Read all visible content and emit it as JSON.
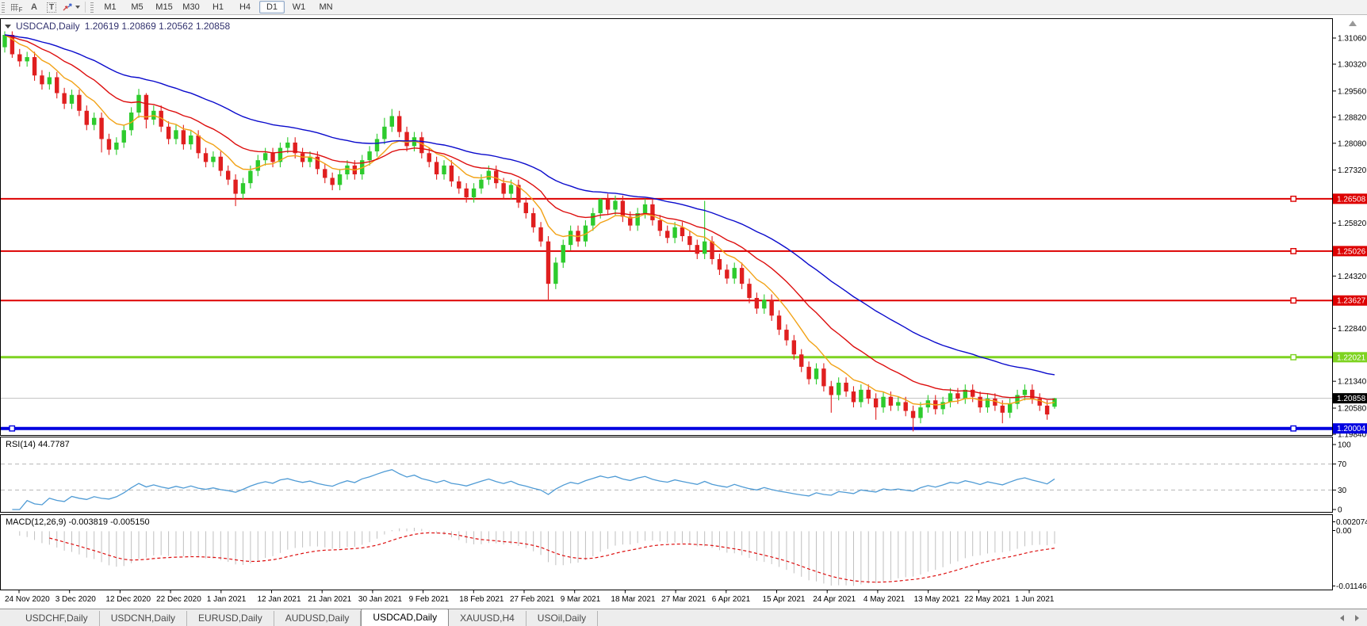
{
  "toolbar": {
    "icons": {
      "grid_letter": "F",
      "text_label": "A",
      "text_box": "T"
    },
    "timeframes": [
      "M1",
      "M5",
      "M15",
      "M30",
      "H1",
      "H4",
      "D1",
      "W1",
      "MN"
    ],
    "active_timeframe": "D1"
  },
  "chart": {
    "title_symbol": "USDCAD,Daily",
    "title_ohlc": "1.20619 1.20869 1.20562 1.20858"
  },
  "rsi_panel": {
    "label": "RSI(14) 44.7787"
  },
  "macd_panel": {
    "label": "MACD(12,26,9) -0.003819 -0.005150"
  },
  "tabs": {
    "items": [
      {
        "label": "USDCHF,Daily",
        "active": false
      },
      {
        "label": "USDCNH,Daily",
        "active": false
      },
      {
        "label": "EURUSD,Daily",
        "active": false
      },
      {
        "label": "AUDUSD,Daily",
        "active": false
      },
      {
        "label": "USDCAD,Daily",
        "active": true
      },
      {
        "label": "XAUUSD,H4",
        "active": false
      },
      {
        "label": "USOil,Daily",
        "active": false
      }
    ]
  },
  "chart_data": {
    "type": "candlestick",
    "symbol": "USDCAD",
    "timeframe": "Daily",
    "ohlc_current": {
      "open": 1.20619,
      "high": 1.20869,
      "low": 1.20562,
      "close": 1.20858
    },
    "x_labels": [
      "24 Nov 2020",
      "3 Dec 2020",
      "12 Dec 2020",
      "22 Dec 2020",
      "1 Jan 2021",
      "12 Jan 2021",
      "21 Jan 2021",
      "30 Jan 2021",
      "9 Feb 2021",
      "18 Feb 2021",
      "27 Feb 2021",
      "9 Mar 2021",
      "18 Mar 2021",
      "27 Mar 2021",
      "6 Apr 2021",
      "15 Apr 2021",
      "24 Apr 2021",
      "4 May 2021",
      "13 May 2021",
      "22 May 2021",
      "1 Jun 2021"
    ],
    "y_ticks": [
      1.3106,
      1.3032,
      1.2956,
      1.2882,
      1.2808,
      1.2732,
      1.2582,
      1.2432,
      1.2284,
      1.2134,
      1.2058,
      1.1984
    ],
    "current_price": 1.20858,
    "hlines": [
      {
        "value": 1.26508,
        "color": "#dd0000",
        "thickness": 2
      },
      {
        "value": 1.25026,
        "color": "#dd0000",
        "thickness": 2
      },
      {
        "value": 1.23627,
        "color": "#dd0000",
        "thickness": 2
      },
      {
        "value": 1.22021,
        "color": "#7ed321",
        "thickness": 3
      },
      {
        "value": 1.20004,
        "color": "#0000e0",
        "thickness": 4
      }
    ],
    "mas": [
      {
        "name": "fast",
        "period": 8,
        "color": "#f2a216"
      },
      {
        "name": "mid",
        "period": 18,
        "color": "#dd0e0e"
      },
      {
        "name": "slow",
        "period": 40,
        "color": "#0a0acc"
      }
    ],
    "colors": {
      "bull": "#2dcb2d",
      "bear": "#e01f1f",
      "grid_price_line": "#c0c0c0"
    },
    "rsi": {
      "period": 14,
      "value": 44.7787,
      "levels": [
        100,
        70,
        30,
        0
      ],
      "dashed_levels": [
        70,
        30
      ],
      "color": "#4f9bd5"
    },
    "macd": {
      "fast": 12,
      "slow": 26,
      "signal_period": 9,
      "macd_value": -0.003819,
      "signal_value": -0.00515,
      "axis_max": "0.002074",
      "axis_zero": "0.00",
      "axis_min": "-0.011463",
      "hist_color": "#c0c0c0",
      "signal_color": "#dd0e0e"
    },
    "candles": [
      [
        1.308,
        1.3125,
        1.3065,
        1.3115
      ],
      [
        1.3115,
        1.3125,
        1.305,
        1.306
      ],
      [
        1.306,
        1.3075,
        1.3025,
        1.304
      ],
      [
        1.304,
        1.3067,
        1.3025,
        1.3052
      ],
      [
        1.3052,
        1.3067,
        1.2985,
        1.3
      ],
      [
        1.3,
        1.3015,
        1.296,
        1.2975
      ],
      [
        1.2975,
        1.301,
        1.296,
        1.2995
      ],
      [
        1.2995,
        1.301,
        1.2935,
        1.295
      ],
      [
        1.295,
        1.2965,
        1.2905,
        1.292
      ],
      [
        1.292,
        1.296,
        1.2905,
        1.2945
      ],
      [
        1.2945,
        1.296,
        1.2885,
        1.29
      ],
      [
        1.29,
        1.2915,
        1.2845,
        1.286
      ],
      [
        1.286,
        1.2895,
        1.2845,
        1.288
      ],
      [
        1.288,
        1.2895,
        1.2782,
        1.282
      ],
      [
        1.282,
        1.2835,
        1.2775,
        1.279
      ],
      [
        1.279,
        1.2825,
        1.2775,
        1.281
      ],
      [
        1.281,
        1.286,
        1.2795,
        1.2845
      ],
      [
        1.2845,
        1.291,
        1.283,
        1.2895
      ],
      [
        1.2895,
        1.2962,
        1.288,
        1.2945
      ],
      [
        1.2945,
        1.295,
        1.285,
        1.2875
      ],
      [
        1.2875,
        1.2915,
        1.286,
        1.29
      ],
      [
        1.29,
        1.2915,
        1.284,
        1.2855
      ],
      [
        1.2855,
        1.287,
        1.2805,
        1.282
      ],
      [
        1.282,
        1.286,
        1.2805,
        1.2845
      ],
      [
        1.2845,
        1.286,
        1.279,
        1.2805
      ],
      [
        1.2805,
        1.2845,
        1.279,
        1.283
      ],
      [
        1.283,
        1.2845,
        1.2765,
        1.278
      ],
      [
        1.278,
        1.2795,
        1.274,
        1.2755
      ],
      [
        1.2755,
        1.2785,
        1.274,
        1.277
      ],
      [
        1.277,
        1.2785,
        1.2715,
        1.273
      ],
      [
        1.273,
        1.2745,
        1.269,
        1.2705
      ],
      [
        1.2705,
        1.272,
        1.263,
        1.2665
      ],
      [
        1.2665,
        1.271,
        1.265,
        1.2695
      ],
      [
        1.2695,
        1.2745,
        1.268,
        1.273
      ],
      [
        1.273,
        1.2775,
        1.2715,
        1.276
      ],
      [
        1.276,
        1.2795,
        1.2745,
        1.278
      ],
      [
        1.278,
        1.2795,
        1.274,
        1.2755
      ],
      [
        1.2755,
        1.281,
        1.274,
        1.2795
      ],
      [
        1.2795,
        1.2825,
        1.278,
        1.281
      ],
      [
        1.281,
        1.2825,
        1.2765,
        1.278
      ],
      [
        1.278,
        1.2795,
        1.274,
        1.2755
      ],
      [
        1.2755,
        1.2785,
        1.274,
        1.277
      ],
      [
        1.277,
        1.2785,
        1.272,
        1.2735
      ],
      [
        1.2735,
        1.275,
        1.2695,
        1.271
      ],
      [
        1.271,
        1.2725,
        1.2675,
        1.269
      ],
      [
        1.269,
        1.2735,
        1.2675,
        1.272
      ],
      [
        1.272,
        1.276,
        1.2705,
        1.2745
      ],
      [
        1.2745,
        1.276,
        1.2705,
        1.272
      ],
      [
        1.272,
        1.2775,
        1.2705,
        1.276
      ],
      [
        1.276,
        1.28,
        1.2745,
        1.2785
      ],
      [
        1.2785,
        1.2835,
        1.277,
        1.282
      ],
      [
        1.282,
        1.288,
        1.2805,
        1.2855
      ],
      [
        1.2855,
        1.2905,
        1.284,
        1.2885
      ],
      [
        1.2885,
        1.29,
        1.2825,
        1.284
      ],
      [
        1.284,
        1.2855,
        1.2785,
        1.28
      ],
      [
        1.28,
        1.284,
        1.2785,
        1.2825
      ],
      [
        1.2825,
        1.284,
        1.2765,
        1.278
      ],
      [
        1.278,
        1.2795,
        1.274,
        1.2755
      ],
      [
        1.2755,
        1.277,
        1.2705,
        1.272
      ],
      [
        1.272,
        1.276,
        1.2705,
        1.2745
      ],
      [
        1.2745,
        1.276,
        1.2685,
        1.27
      ],
      [
        1.27,
        1.2715,
        1.2665,
        1.268
      ],
      [
        1.268,
        1.2695,
        1.264,
        1.2655
      ],
      [
        1.2655,
        1.2695,
        1.264,
        1.268
      ],
      [
        1.268,
        1.272,
        1.2665,
        1.2705
      ],
      [
        1.2705,
        1.2745,
        1.269,
        1.273
      ],
      [
        1.273,
        1.2745,
        1.268,
        1.2695
      ],
      [
        1.2695,
        1.271,
        1.265,
        1.2665
      ],
      [
        1.2665,
        1.2705,
        1.265,
        1.269
      ],
      [
        1.269,
        1.2705,
        1.2625,
        1.264
      ],
      [
        1.264,
        1.2655,
        1.2595,
        1.261
      ],
      [
        1.261,
        1.2625,
        1.2555,
        1.257
      ],
      [
        1.257,
        1.2585,
        1.2515,
        1.253
      ],
      [
        1.253,
        1.2545,
        1.2365,
        1.241
      ],
      [
        1.241,
        1.2485,
        1.2395,
        1.247
      ],
      [
        1.247,
        1.2535,
        1.2455,
        1.252
      ],
      [
        1.252,
        1.2575,
        1.2505,
        1.256
      ],
      [
        1.256,
        1.2575,
        1.2515,
        1.253
      ],
      [
        1.253,
        1.259,
        1.2515,
        1.2575
      ],
      [
        1.2575,
        1.2625,
        1.256,
        1.261
      ],
      [
        1.261,
        1.2652,
        1.2595,
        1.265
      ],
      [
        1.265,
        1.2665,
        1.2605,
        1.262
      ],
      [
        1.262,
        1.266,
        1.2605,
        1.2645
      ],
      [
        1.2645,
        1.266,
        1.2585,
        1.26
      ],
      [
        1.26,
        1.2615,
        1.256,
        1.2575
      ],
      [
        1.2575,
        1.2625,
        1.256,
        1.261
      ],
      [
        1.261,
        1.2651,
        1.2595,
        1.2635
      ],
      [
        1.2635,
        1.265,
        1.2575,
        1.259
      ],
      [
        1.259,
        1.2605,
        1.2545,
        1.256
      ],
      [
        1.256,
        1.2575,
        1.2525,
        1.254
      ],
      [
        1.254,
        1.2585,
        1.2525,
        1.257
      ],
      [
        1.257,
        1.2585,
        1.253,
        1.2545
      ],
      [
        1.2545,
        1.256,
        1.2505,
        1.252
      ],
      [
        1.252,
        1.2535,
        1.248,
        1.2495
      ],
      [
        1.2495,
        1.2645,
        1.248,
        1.253
      ],
      [
        1.253,
        1.2545,
        1.2465,
        1.248
      ],
      [
        1.248,
        1.2495,
        1.2435,
        1.245
      ],
      [
        1.245,
        1.2465,
        1.241,
        1.2425
      ],
      [
        1.2425,
        1.247,
        1.241,
        1.2455
      ],
      [
        1.2455,
        1.247,
        1.2395,
        1.241
      ],
      [
        1.241,
        1.2425,
        1.2355,
        1.237
      ],
      [
        1.237,
        1.2385,
        1.2325,
        1.234
      ],
      [
        1.234,
        1.238,
        1.2325,
        1.2365
      ],
      [
        1.2365,
        1.238,
        1.2305,
        1.232
      ],
      [
        1.232,
        1.2335,
        1.2265,
        1.228
      ],
      [
        1.228,
        1.2295,
        1.2235,
        1.225
      ],
      [
        1.225,
        1.2265,
        1.2195,
        1.221
      ],
      [
        1.221,
        1.2225,
        1.216,
        1.2175
      ],
      [
        1.2175,
        1.219,
        1.2125,
        1.214
      ],
      [
        1.214,
        1.2185,
        1.2125,
        1.217
      ],
      [
        1.217,
        1.2185,
        1.2105,
        1.212
      ],
      [
        1.212,
        1.2135,
        1.2045,
        1.2095
      ],
      [
        1.2095,
        1.2145,
        1.208,
        1.213
      ],
      [
        1.213,
        1.2145,
        1.209,
        1.2105
      ],
      [
        1.2105,
        1.212,
        1.206,
        1.2075
      ],
      [
        1.2075,
        1.2125,
        1.206,
        1.211
      ],
      [
        1.211,
        1.2125,
        1.207,
        1.2085
      ],
      [
        1.2085,
        1.21,
        1.2025,
        1.206
      ],
      [
        1.206,
        1.2105,
        1.2045,
        1.209
      ],
      [
        1.209,
        1.2105,
        1.205,
        1.2065
      ],
      [
        1.2065,
        1.209,
        1.205,
        1.2075
      ],
      [
        1.2075,
        1.209,
        1.2035,
        1.205
      ],
      [
        1.205,
        1.2065,
        1.1992,
        1.203
      ],
      [
        1.203,
        1.2075,
        1.2015,
        1.206
      ],
      [
        1.206,
        1.2095,
        1.2045,
        1.208
      ],
      [
        1.208,
        1.2095,
        1.204,
        1.2055
      ],
      [
        1.2055,
        1.209,
        1.204,
        1.2075
      ],
      [
        1.2075,
        1.2115,
        1.206,
        1.21
      ],
      [
        1.21,
        1.2115,
        1.207,
        1.2085
      ],
      [
        1.2085,
        1.2125,
        1.207,
        1.211
      ],
      [
        1.211,
        1.2125,
        1.2075,
        1.209
      ],
      [
        1.209,
        1.2105,
        1.2045,
        1.206
      ],
      [
        1.206,
        1.21,
        1.2045,
        1.2085
      ],
      [
        1.2085,
        1.21,
        1.205,
        1.2065
      ],
      [
        1.2065,
        1.208,
        1.2015,
        1.2045
      ],
      [
        1.2045,
        1.2085,
        1.203,
        1.207
      ],
      [
        1.207,
        1.211,
        1.2055,
        1.2095
      ],
      [
        1.2095,
        1.2125,
        1.208,
        1.211
      ],
      [
        1.211,
        1.2125,
        1.207,
        1.2085
      ],
      [
        1.2085,
        1.21,
        1.205,
        1.2065
      ],
      [
        1.2065,
        1.208,
        1.2025,
        1.204
      ],
      [
        1.20619,
        1.20869,
        1.20562,
        1.20858
      ]
    ]
  }
}
